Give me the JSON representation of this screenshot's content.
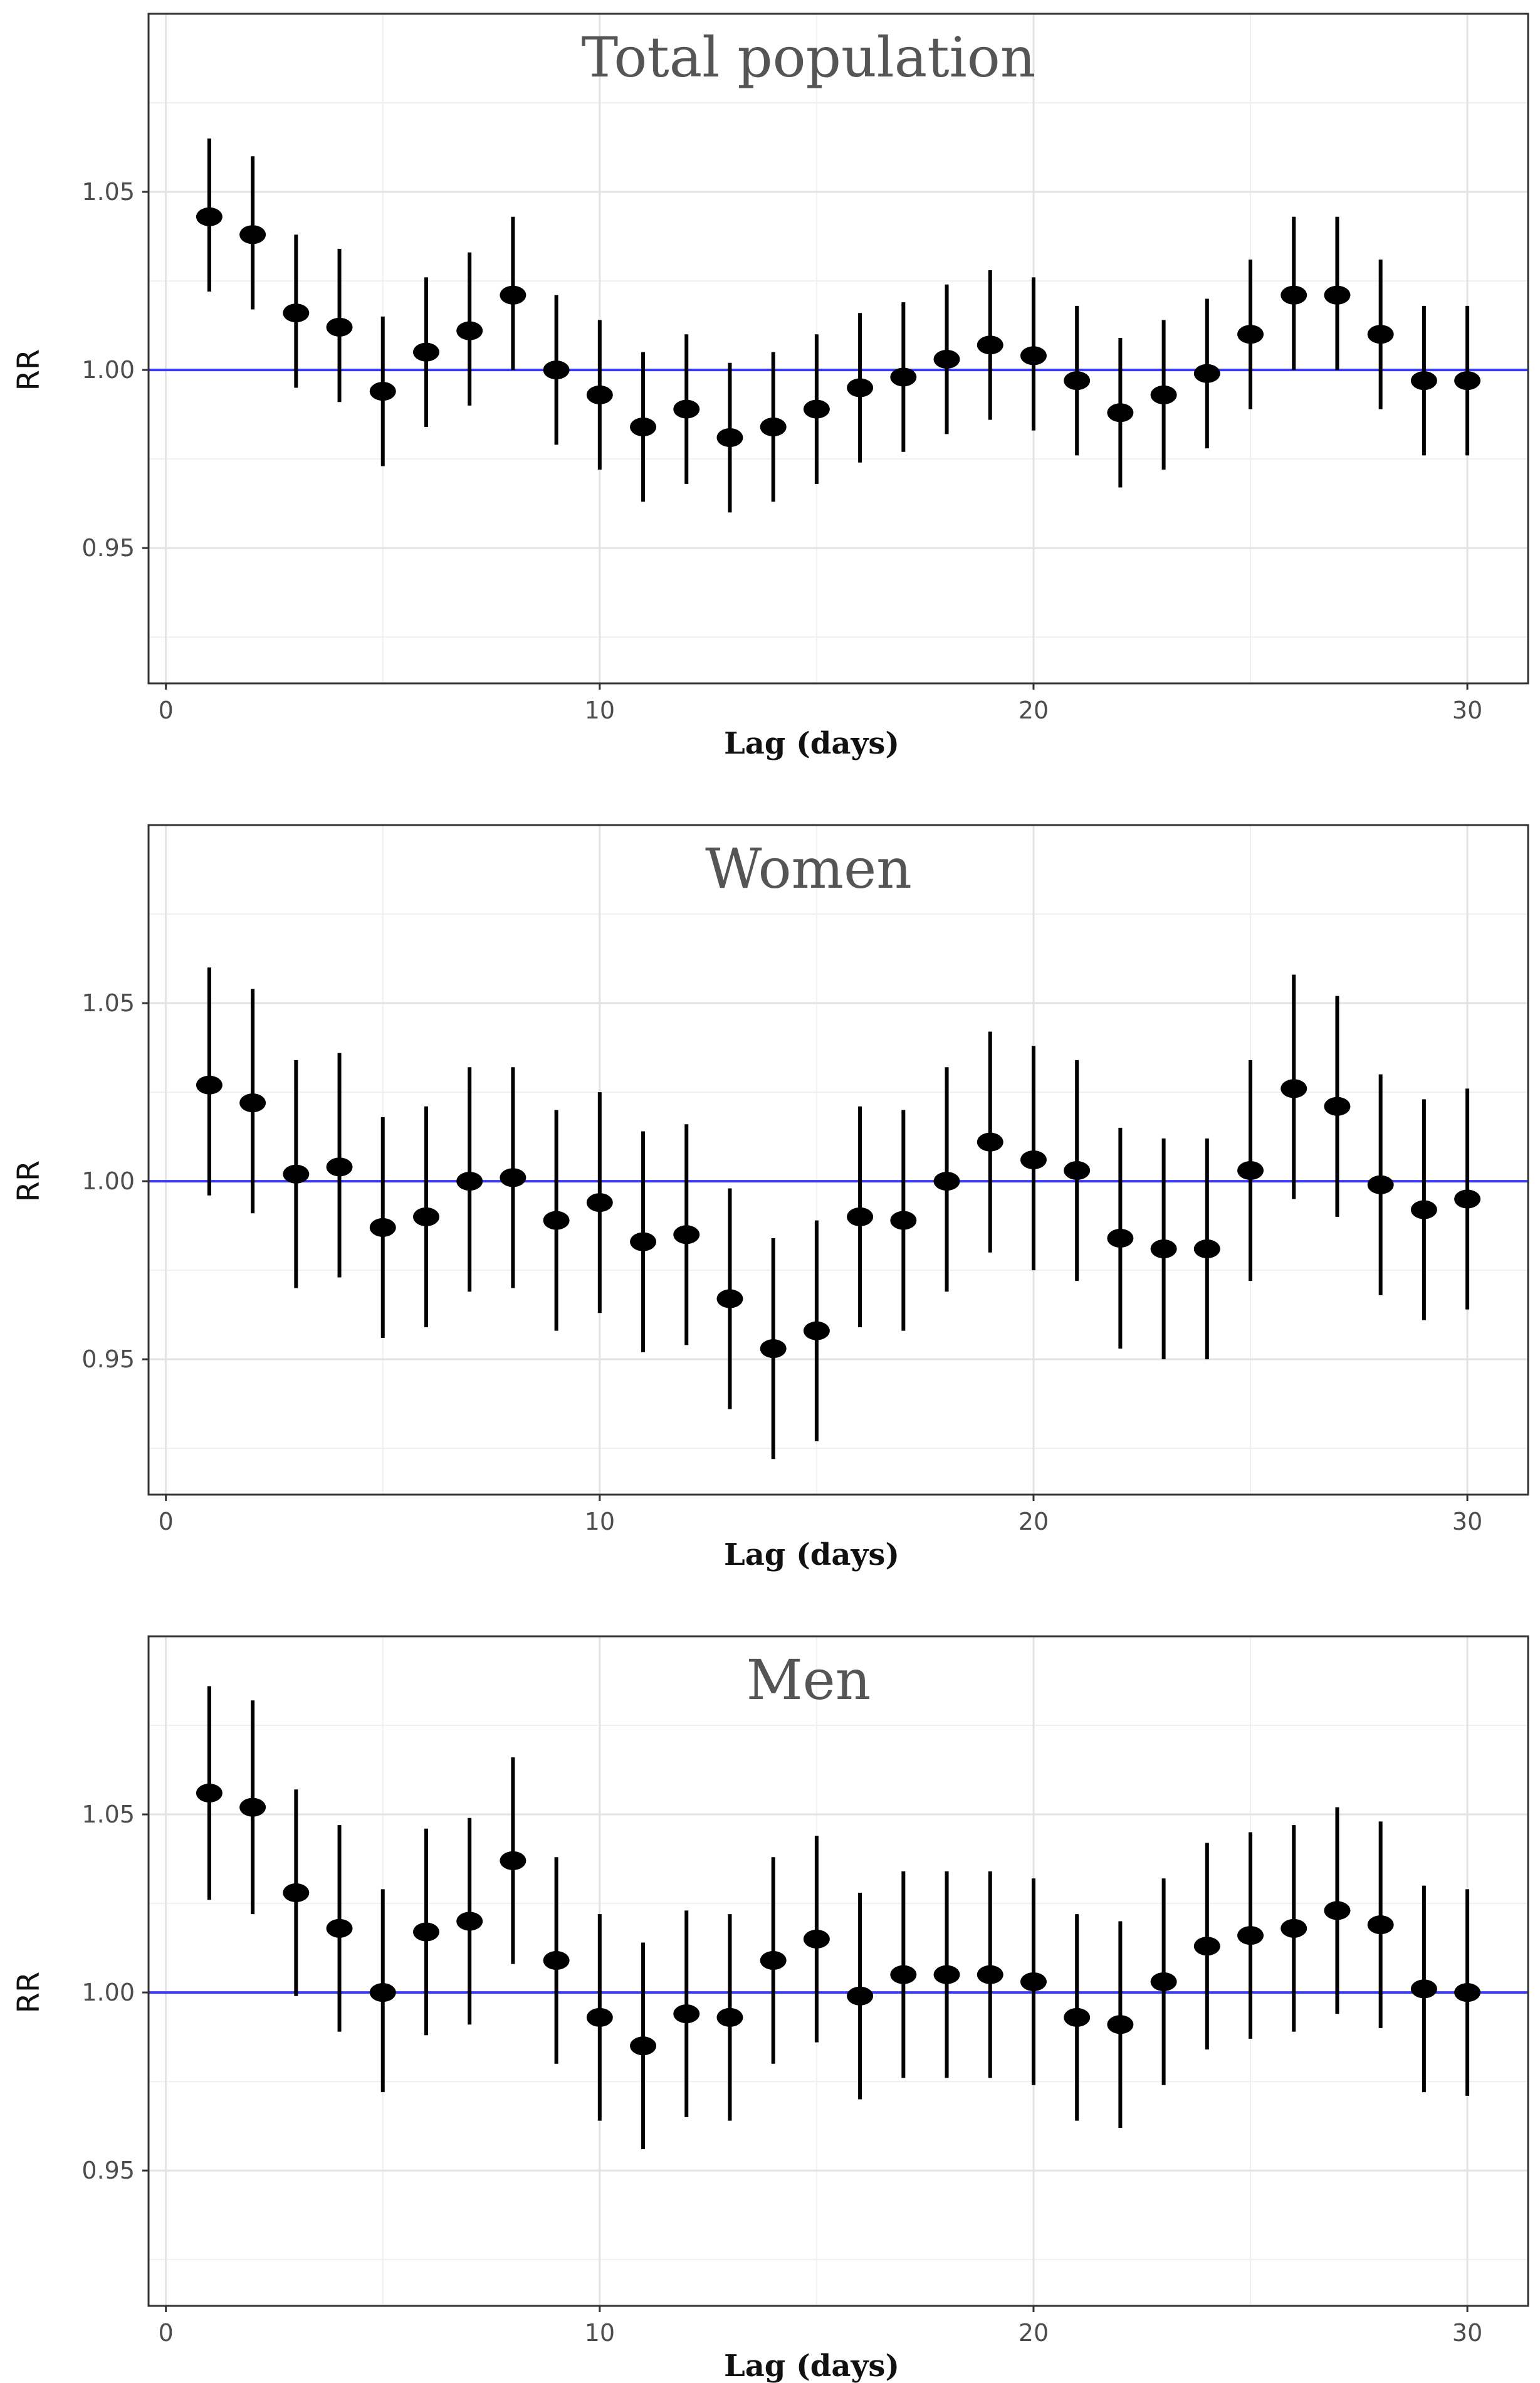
{
  "chart_data": [
    {
      "type": "scatter",
      "title": "Total population",
      "xlabel": "Lag (days)",
      "ylabel": "RR",
      "xlim": [
        -0.4,
        31.4
      ],
      "ylim": [
        0.912,
        1.1
      ],
      "xticks": [
        0,
        10,
        20,
        30
      ],
      "yticks": [
        0.95,
        1.0,
        1.05
      ],
      "ytick_labels": [
        "0.95",
        "1.00",
        "1.05"
      ],
      "reference_line": 1.0,
      "x": [
        1,
        2,
        3,
        4,
        5,
        6,
        7,
        8,
        9,
        10,
        11,
        12,
        13,
        14,
        15,
        16,
        17,
        18,
        19,
        20,
        21,
        22,
        23,
        24,
        25,
        26,
        27,
        28,
        29,
        30
      ],
      "estimate": [
        1.043,
        1.038,
        1.016,
        1.012,
        0.994,
        1.005,
        1.011,
        1.021,
        1.0,
        0.993,
        0.984,
        0.989,
        0.981,
        0.984,
        0.989,
        0.995,
        0.998,
        1.003,
        1.007,
        1.004,
        0.997,
        0.988,
        0.993,
        0.999,
        1.01,
        1.021,
        1.021,
        1.01,
        0.997,
        0.997
      ],
      "lower": [
        1.022,
        1.017,
        0.995,
        0.991,
        0.973,
        0.984,
        0.99,
        1.0,
        0.979,
        0.972,
        0.963,
        0.968,
        0.96,
        0.963,
        0.968,
        0.974,
        0.977,
        0.982,
        0.986,
        0.983,
        0.976,
        0.967,
        0.972,
        0.978,
        0.989,
        1.0,
        1.0,
        0.989,
        0.976,
        0.976
      ],
      "upper": [
        1.065,
        1.06,
        1.038,
        1.034,
        1.015,
        1.026,
        1.033,
        1.043,
        1.021,
        1.014,
        1.005,
        1.01,
        1.002,
        1.005,
        1.01,
        1.016,
        1.019,
        1.024,
        1.028,
        1.026,
        1.018,
        1.009,
        1.014,
        1.02,
        1.031,
        1.043,
        1.043,
        1.031,
        1.018,
        1.018
      ]
    },
    {
      "type": "scatter",
      "title": "Women",
      "xlabel": "Lag (days)",
      "ylabel": "RR",
      "xlim": [
        -0.4,
        31.4
      ],
      "ylim": [
        0.912,
        1.1
      ],
      "xticks": [
        0,
        10,
        20,
        30
      ],
      "yticks": [
        0.95,
        1.0,
        1.05
      ],
      "ytick_labels": [
        "0.95",
        "1.00",
        "1.05"
      ],
      "reference_line": 1.0,
      "x": [
        1,
        2,
        3,
        4,
        5,
        6,
        7,
        8,
        9,
        10,
        11,
        12,
        13,
        14,
        15,
        16,
        17,
        18,
        19,
        20,
        21,
        22,
        23,
        24,
        25,
        26,
        27,
        28,
        29,
        30
      ],
      "estimate": [
        1.027,
        1.022,
        1.002,
        1.004,
        0.987,
        0.99,
        1.0,
        1.001,
        0.989,
        0.994,
        0.983,
        0.985,
        0.967,
        0.953,
        0.958,
        0.99,
        0.989,
        1.0,
        1.011,
        1.006,
        1.003,
        0.984,
        0.981,
        0.981,
        1.003,
        1.026,
        1.021,
        0.999,
        0.992,
        0.995
      ],
      "lower": [
        0.996,
        0.991,
        0.97,
        0.973,
        0.956,
        0.959,
        0.969,
        0.97,
        0.958,
        0.963,
        0.952,
        0.954,
        0.936,
        0.922,
        0.927,
        0.959,
        0.958,
        0.969,
        0.98,
        0.975,
        0.972,
        0.953,
        0.95,
        0.95,
        0.972,
        0.995,
        0.99,
        0.968,
        0.961,
        0.964
      ],
      "upper": [
        1.06,
        1.054,
        1.034,
        1.036,
        1.018,
        1.021,
        1.032,
        1.032,
        1.02,
        1.025,
        1.014,
        1.016,
        0.998,
        0.984,
        0.989,
        1.021,
        1.02,
        1.032,
        1.042,
        1.038,
        1.034,
        1.015,
        1.012,
        1.012,
        1.034,
        1.058,
        1.052,
        1.03,
        1.023,
        1.026
      ]
    },
    {
      "type": "scatter",
      "title": "Men",
      "xlabel": "Lag (days)",
      "ylabel": "RR",
      "xlim": [
        -0.4,
        31.4
      ],
      "ylim": [
        0.912,
        1.1
      ],
      "xticks": [
        0,
        10,
        20,
        30
      ],
      "yticks": [
        0.95,
        1.0,
        1.05
      ],
      "ytick_labels": [
        "0.95",
        "1.00",
        "1.05"
      ],
      "reference_line": 1.0,
      "x": [
        1,
        2,
        3,
        4,
        5,
        6,
        7,
        8,
        9,
        10,
        11,
        12,
        13,
        14,
        15,
        16,
        17,
        18,
        19,
        20,
        21,
        22,
        23,
        24,
        25,
        26,
        27,
        28,
        29,
        30
      ],
      "estimate": [
        1.056,
        1.052,
        1.028,
        1.018,
        1.0,
        1.017,
        1.02,
        1.037,
        1.009,
        0.993,
        0.985,
        0.994,
        0.993,
        1.009,
        1.015,
        0.999,
        1.005,
        1.005,
        1.005,
        1.003,
        0.993,
        0.991,
        1.003,
        1.013,
        1.016,
        1.018,
        1.023,
        1.019,
        1.001,
        1.0
      ],
      "lower": [
        1.026,
        1.022,
        0.999,
        0.989,
        0.972,
        0.988,
        0.991,
        1.008,
        0.98,
        0.964,
        0.956,
        0.965,
        0.964,
        0.98,
        0.986,
        0.97,
        0.976,
        0.976,
        0.976,
        0.974,
        0.964,
        0.962,
        0.974,
        0.984,
        0.987,
        0.989,
        0.994,
        0.99,
        0.972,
        0.971
      ],
      "upper": [
        1.086,
        1.082,
        1.057,
        1.047,
        1.029,
        1.046,
        1.049,
        1.066,
        1.038,
        1.022,
        1.014,
        1.023,
        1.022,
        1.038,
        1.044,
        1.028,
        1.034,
        1.034,
        1.034,
        1.032,
        1.022,
        1.02,
        1.032,
        1.042,
        1.045,
        1.047,
        1.052,
        1.048,
        1.03,
        1.029
      ]
    }
  ]
}
